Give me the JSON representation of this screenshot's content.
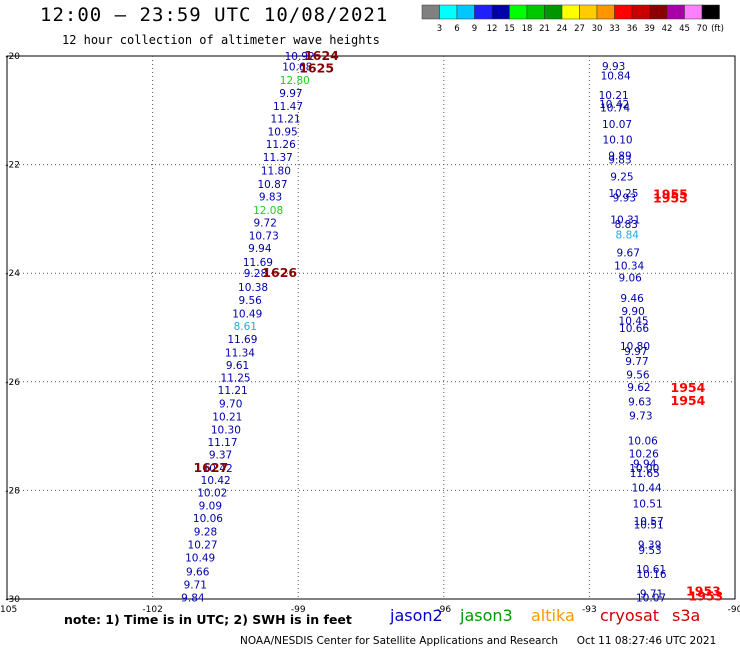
{
  "header": {
    "title": "12:00 – 23:59 UTC 10/08/2021",
    "subtitle": "12 hour collection of altimeter wave heights"
  },
  "footer": {
    "note": "note: 1) Time is in UTC; 2) SWH is in feet",
    "credit": "NOAA/NESDIS Center for Satellite Applications and Research",
    "timestamp": "Oct 11 08:27:46 UTC 2021"
  },
  "satellites": [
    {
      "name": "jason2",
      "color": "#0000cc"
    },
    {
      "name": "jason3",
      "color": "#009900"
    },
    {
      "name": "altika",
      "color": "#ff9900"
    },
    {
      "name": "cryosat",
      "color": "#cc0000"
    },
    {
      "name": "s3a",
      "color": "#cc0000"
    }
  ],
  "chart_data": {
    "type": "scatter",
    "xlim": [
      -105,
      -90
    ],
    "ylim": [
      -30,
      -20
    ],
    "x_ticks": [
      -105,
      -102,
      -99,
      -96,
      -93,
      -90
    ],
    "y_ticks": [
      -20,
      -22,
      -24,
      -26,
      -28,
      -30
    ],
    "grid": true,
    "color_scale": {
      "unit": "(ft)",
      "labels": [
        "3",
        "6",
        "9",
        "12",
        "15",
        "18",
        "21",
        "24",
        "27",
        "30",
        "33",
        "36",
        "39",
        "42",
        "45",
        "70"
      ],
      "colors": [
        "#808080",
        "#00ffff",
        "#00c8ff",
        "#2020ff",
        "#0000aa",
        "#00ff00",
        "#00c800",
        "#009600",
        "#ffff00",
        "#ffcc00",
        "#ff9600",
        "#ff0000",
        "#c80000",
        "#8c0000",
        "#aa00aa",
        "#ff80ff",
        "#000000"
      ]
    },
    "tracks": [
      {
        "name": "west-pass",
        "points": [
          {
            "lon": -98.97,
            "lat": -20.0,
            "value": "10.92",
            "color": "#0000aa"
          },
          {
            "lon": -99.02,
            "lat": -20.19,
            "value": "10.68",
            "color": "#0000aa"
          },
          {
            "lon": -99.07,
            "lat": -20.44,
            "value": "12.80",
            "color": "#22cc22"
          },
          {
            "lon": -99.15,
            "lat": -20.68,
            "value": "9.97",
            "color": "#0000aa"
          },
          {
            "lon": -99.21,
            "lat": -20.92,
            "value": "11.47",
            "color": "#0000aa"
          },
          {
            "lon": -99.26,
            "lat": -21.15,
            "value": "11.21",
            "color": "#0000aa"
          },
          {
            "lon": -99.32,
            "lat": -21.39,
            "value": "10.95",
            "color": "#0000aa"
          },
          {
            "lon": -99.36,
            "lat": -21.62,
            "value": "11.26",
            "color": "#0000aa"
          },
          {
            "lon": -99.42,
            "lat": -21.86,
            "value": "11.37",
            "color": "#0000aa"
          },
          {
            "lon": -99.46,
            "lat": -22.11,
            "value": "11.80",
            "color": "#0000aa"
          },
          {
            "lon": -99.53,
            "lat": -22.36,
            "value": "10.87",
            "color": "#0000aa"
          },
          {
            "lon": -99.57,
            "lat": -22.59,
            "value": "9.83",
            "color": "#0000aa"
          },
          {
            "lon": -99.62,
            "lat": -22.84,
            "value": "12.08",
            "color": "#22cc22"
          },
          {
            "lon": -99.68,
            "lat": -23.07,
            "value": "9.72",
            "color": "#0000aa"
          },
          {
            "lon": -99.71,
            "lat": -23.31,
            "value": "10.73",
            "color": "#0000aa"
          },
          {
            "lon": -99.79,
            "lat": -23.54,
            "value": "9.94",
            "color": "#0000aa"
          },
          {
            "lon": -99.83,
            "lat": -23.79,
            "value": "11.69",
            "color": "#0000aa"
          },
          {
            "lon": -99.88,
            "lat": -24.0,
            "value": "9.28",
            "color": "#0000aa"
          },
          {
            "lon": -99.93,
            "lat": -24.25,
            "value": "10.38",
            "color": "#0000aa"
          },
          {
            "lon": -99.99,
            "lat": -24.49,
            "value": "9.56",
            "color": "#0000aa"
          },
          {
            "lon": -100.05,
            "lat": -24.74,
            "value": "10.49",
            "color": "#0000aa"
          },
          {
            "lon": -100.09,
            "lat": -24.97,
            "value": "8.61",
            "color": "#22aadd"
          },
          {
            "lon": -100.15,
            "lat": -25.21,
            "value": "11.69",
            "color": "#0000aa"
          },
          {
            "lon": -100.2,
            "lat": -25.46,
            "value": "11.34",
            "color": "#0000aa"
          },
          {
            "lon": -100.25,
            "lat": -25.69,
            "value": "9.61",
            "color": "#0000aa"
          },
          {
            "lon": -100.29,
            "lat": -25.92,
            "value": "11.25",
            "color": "#0000aa"
          },
          {
            "lon": -100.35,
            "lat": -26.15,
            "value": "11.21",
            "color": "#0000aa"
          },
          {
            "lon": -100.39,
            "lat": -26.4,
            "value": "9.70",
            "color": "#0000aa"
          },
          {
            "lon": -100.46,
            "lat": -26.64,
            "value": "10.21",
            "color": "#0000aa"
          },
          {
            "lon": -100.49,
            "lat": -26.88,
            "value": "10.30",
            "color": "#0000aa"
          },
          {
            "lon": -100.56,
            "lat": -27.11,
            "value": "11.17",
            "color": "#0000aa"
          },
          {
            "lon": -100.6,
            "lat": -27.34,
            "value": "9.37",
            "color": "#0000aa"
          },
          {
            "lon": -100.66,
            "lat": -27.59,
            "value": "10.42",
            "color": "#0000aa"
          },
          {
            "lon": -100.7,
            "lat": -27.81,
            "value": "10.42",
            "color": "#0000aa"
          },
          {
            "lon": -100.77,
            "lat": -28.04,
            "value": "10.02",
            "color": "#0000aa"
          },
          {
            "lon": -100.81,
            "lat": -28.28,
            "value": "9.09",
            "color": "#0000aa"
          },
          {
            "lon": -100.86,
            "lat": -28.51,
            "value": "10.06",
            "color": "#0000aa"
          },
          {
            "lon": -100.91,
            "lat": -28.76,
            "value": "9.28",
            "color": "#0000aa"
          },
          {
            "lon": -100.97,
            "lat": -29.0,
            "value": "10.27",
            "color": "#0000aa"
          },
          {
            "lon": -101.02,
            "lat": -29.24,
            "value": "10.49",
            "color": "#0000aa"
          },
          {
            "lon": -101.07,
            "lat": -29.49,
            "value": "9.66",
            "color": "#0000aa"
          },
          {
            "lon": -101.12,
            "lat": -29.73,
            "value": "9.71",
            "color": "#0000aa"
          },
          {
            "lon": -101.17,
            "lat": -29.97,
            "value": "9.84",
            "color": "#0000aa"
          }
        ]
      },
      {
        "name": "east-pass",
        "points": [
          {
            "lon": -92.5,
            "lat": -20.18,
            "value": "9.93",
            "color": "#0000aa"
          },
          {
            "lon": -92.46,
            "lat": -20.36,
            "value": "10.84",
            "color": "#0000aa"
          },
          {
            "lon": -92.5,
            "lat": -20.72,
            "value": "10.21",
            "color": "#0000aa"
          },
          {
            "lon": -92.49,
            "lat": -20.88,
            "value": "10.42",
            "color": "#0000aa"
          },
          {
            "lon": -92.47,
            "lat": -20.95,
            "value": "10.74",
            "color": "#0000aa"
          },
          {
            "lon": -92.43,
            "lat": -21.25,
            "value": "10.07",
            "color": "#0000aa"
          },
          {
            "lon": -92.42,
            "lat": -21.54,
            "value": "10.10",
            "color": "#0000aa"
          },
          {
            "lon": -92.37,
            "lat": -21.83,
            "value": "9.89",
            "color": "#0000aa"
          },
          {
            "lon": -92.37,
            "lat": -21.91,
            "value": "9.83",
            "color": "#0000aa"
          },
          {
            "lon": -92.33,
            "lat": -22.22,
            "value": "9.25",
            "color": "#0000aa"
          },
          {
            "lon": -92.3,
            "lat": -22.52,
            "value": "10.25",
            "color": "#0000aa"
          },
          {
            "lon": -92.28,
            "lat": -22.61,
            "value": "9.93",
            "color": "#0000aa"
          },
          {
            "lon": -92.26,
            "lat": -23.01,
            "value": "10.31",
            "color": "#0000aa"
          },
          {
            "lon": -92.24,
            "lat": -23.09,
            "value": "8.83",
            "color": "#0000aa"
          },
          {
            "lon": -92.22,
            "lat": -23.29,
            "value": "8.84",
            "color": "#22aadd"
          },
          {
            "lon": -92.2,
            "lat": -23.62,
            "value": "9.67",
            "color": "#0000aa"
          },
          {
            "lon": -92.18,
            "lat": -23.86,
            "value": "10.34",
            "color": "#0000aa"
          },
          {
            "lon": -92.16,
            "lat": -24.08,
            "value": "9.06",
            "color": "#0000aa"
          },
          {
            "lon": -92.12,
            "lat": -24.46,
            "value": "9.46",
            "color": "#0000aa"
          },
          {
            "lon": -92.1,
            "lat": -24.7,
            "value": "9.90",
            "color": "#0000aa"
          },
          {
            "lon": -92.09,
            "lat": -24.87,
            "value": "10.45",
            "color": "#0000aa"
          },
          {
            "lon": -92.08,
            "lat": -25.01,
            "value": "10.66",
            "color": "#0000aa"
          },
          {
            "lon": -92.06,
            "lat": -25.34,
            "value": "10.80",
            "color": "#0000aa"
          },
          {
            "lon": -92.04,
            "lat": -25.43,
            "value": "9.97",
            "color": "#0000aa"
          },
          {
            "lon": -92.02,
            "lat": -25.62,
            "value": "9.77",
            "color": "#0000aa"
          },
          {
            "lon": -92.0,
            "lat": -25.87,
            "value": "9.56",
            "color": "#0000aa"
          },
          {
            "lon": -91.98,
            "lat": -26.1,
            "value": "9.62",
            "color": "#0000aa"
          },
          {
            "lon": -91.96,
            "lat": -26.36,
            "value": "9.63",
            "color": "#0000aa"
          },
          {
            "lon": -91.94,
            "lat": -26.62,
            "value": "9.73",
            "color": "#0000aa"
          },
          {
            "lon": -91.9,
            "lat": -27.08,
            "value": "10.06",
            "color": "#0000aa"
          },
          {
            "lon": -91.88,
            "lat": -27.32,
            "value": "10.26",
            "color": "#0000aa"
          },
          {
            "lon": -91.86,
            "lat": -27.5,
            "value": "9.94",
            "color": "#0000aa"
          },
          {
            "lon": -91.87,
            "lat": -27.59,
            "value": "10.00",
            "color": "#0000aa"
          },
          {
            "lon": -91.86,
            "lat": -27.68,
            "value": "11.65",
            "color": "#0000aa"
          },
          {
            "lon": -91.82,
            "lat": -27.95,
            "value": "10.44",
            "color": "#0000aa"
          },
          {
            "lon": -91.8,
            "lat": -28.24,
            "value": "10.51",
            "color": "#0000aa"
          },
          {
            "lon": -91.78,
            "lat": -28.56,
            "value": "10.57",
            "color": "#0000aa"
          },
          {
            "lon": -91.78,
            "lat": -28.63,
            "value": "10.51",
            "color": "#0000aa"
          },
          {
            "lon": -91.76,
            "lat": -29.0,
            "value": "9.39",
            "color": "#0000aa"
          },
          {
            "lon": -91.75,
            "lat": -29.1,
            "value": "9.53",
            "color": "#0000aa"
          },
          {
            "lon": -91.73,
            "lat": -29.45,
            "value": "10.61",
            "color": "#0000aa"
          },
          {
            "lon": -91.72,
            "lat": -29.54,
            "value": "10.16",
            "color": "#0000aa"
          },
          {
            "lon": -91.72,
            "lat": -29.9,
            "value": "9.71",
            "color": "#0000aa"
          },
          {
            "lon": -91.73,
            "lat": -29.97,
            "value": "10.07",
            "color": "#0000aa"
          }
        ]
      }
    ],
    "time_labels": [
      {
        "lon": -98.52,
        "lat": -20.0,
        "text": "1624",
        "color": "#880000"
      },
      {
        "lon": -98.62,
        "lat": -20.23,
        "text": "1625",
        "color": "#880000"
      },
      {
        "lon": -99.38,
        "lat": -24.0,
        "text": "1626",
        "color": "#880000"
      },
      {
        "lon": -100.8,
        "lat": -27.59,
        "text": "1627",
        "color": "#880000"
      },
      {
        "lon": -91.33,
        "lat": -22.55,
        "text": "1955",
        "color": "#ff0000"
      },
      {
        "lon": -91.33,
        "lat": -22.62,
        "text": "1953",
        "color": "#ff0000"
      },
      {
        "lon": -90.97,
        "lat": -26.11,
        "text": "1954",
        "color": "#ff0000"
      },
      {
        "lon": -90.97,
        "lat": -26.35,
        "text": "1954",
        "color": "#ff0000"
      },
      {
        "lon": -90.65,
        "lat": -29.86,
        "text": "1953",
        "color": "#ff0000"
      },
      {
        "lon": -90.6,
        "lat": -29.95,
        "text": "1953",
        "color": "#ff0000"
      }
    ]
  }
}
